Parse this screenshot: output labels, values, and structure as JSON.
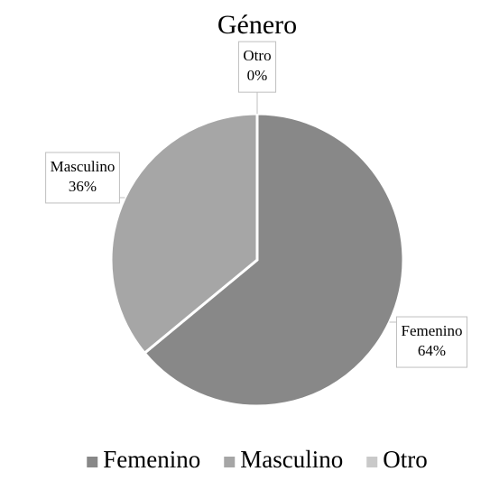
{
  "chart_data": {
    "type": "pie",
    "title": "Género",
    "categories": [
      "Femenino",
      "Masculino",
      "Otro"
    ],
    "values": [
      64,
      36,
      0
    ],
    "value_labels": [
      "64%",
      "36%",
      "0%"
    ],
    "colors": [
      "#888888",
      "#a6a6a6",
      "#c9c9c9"
    ],
    "legend": "bottom"
  }
}
